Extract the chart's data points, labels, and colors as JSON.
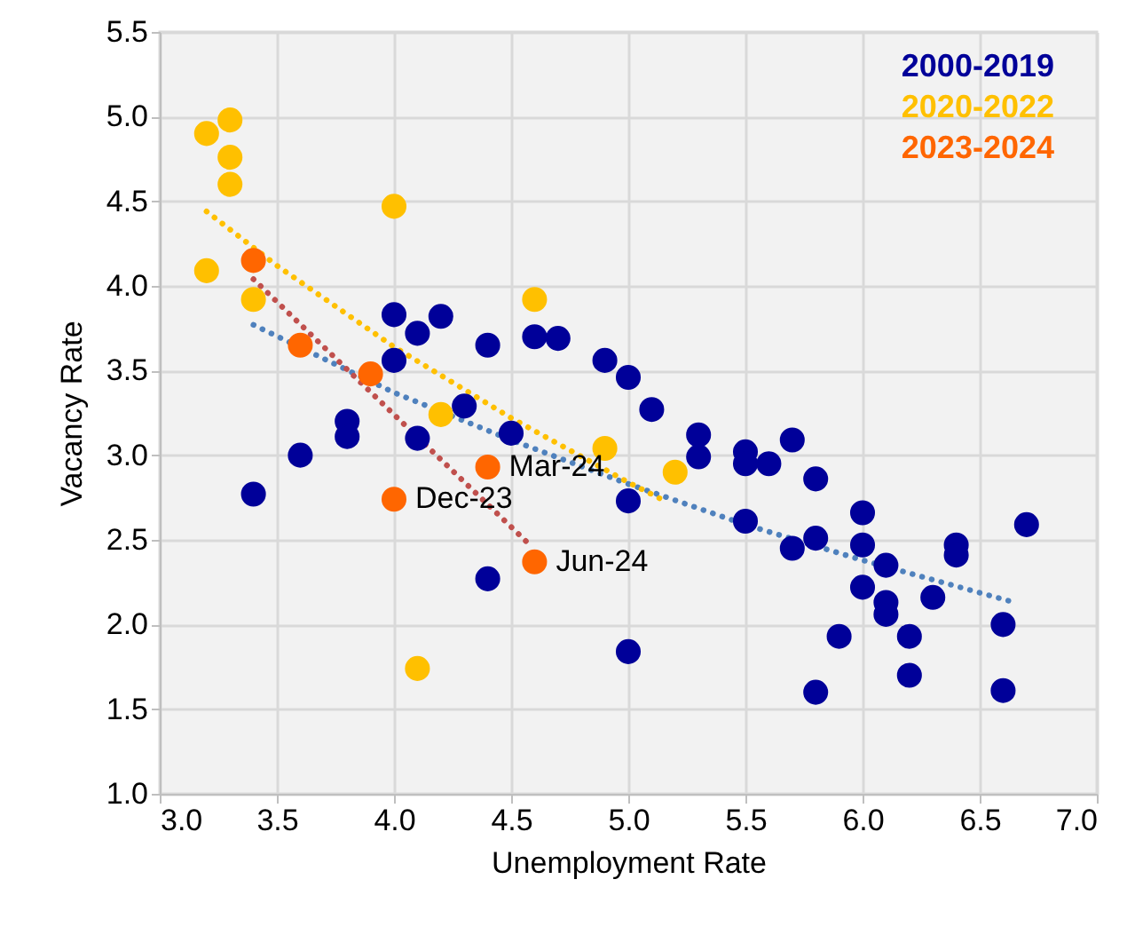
{
  "chart_data": {
    "type": "scatter",
    "xlabel": "Unemployment Rate",
    "ylabel": "Vacancy Rate",
    "xlim": [
      3.0,
      7.0
    ],
    "ylim": [
      1.0,
      5.5
    ],
    "xticks": [
      {
        "value": 3,
        "label": "3.0"
      },
      {
        "value": 3.5,
        "label": "3.5"
      },
      {
        "value": 4,
        "label": "4.0"
      },
      {
        "value": 4.5,
        "label": "4.5"
      },
      {
        "value": 5,
        "label": "5.0"
      },
      {
        "value": 5.5,
        "label": "5.5"
      },
      {
        "value": 6,
        "label": "6.0"
      },
      {
        "value": 6.5,
        "label": "6.5"
      },
      {
        "value": 7,
        "label": "7.0"
      }
    ],
    "yticks": [
      {
        "value": 1,
        "label": "1.0"
      },
      {
        "value": 1.5,
        "label": "1.5"
      },
      {
        "value": 2,
        "label": "2.0"
      },
      {
        "value": 2.5,
        "label": "2.5"
      },
      {
        "value": 3,
        "label": "3.0"
      },
      {
        "value": 3.5,
        "label": "3.5"
      },
      {
        "value": 4,
        "label": "4.0"
      },
      {
        "value": 4.5,
        "label": "4.5"
      },
      {
        "value": 5,
        "label": "5.0"
      },
      {
        "value": 5.5,
        "label": "5.5"
      }
    ],
    "grid": true,
    "legend": "top right",
    "series": [
      {
        "name": "2000-2019",
        "marker": "circle",
        "color": "#000099",
        "x": [
          3.4,
          3.6,
          3.8,
          3.8,
          4.0,
          4.0,
          4.1,
          4.1,
          4.2,
          4.3,
          4.4,
          4.4,
          4.5,
          4.6,
          4.7,
          4.9,
          5.0,
          5.0,
          5.0,
          5.1,
          5.3,
          5.3,
          5.5,
          5.5,
          5.5,
          5.6,
          5.7,
          5.7,
          5.8,
          5.8,
          5.8,
          5.9,
          6.0,
          6.0,
          6.0,
          6.1,
          6.1,
          6.1,
          6.2,
          6.2,
          6.3,
          6.4,
          6.4,
          6.6,
          6.6,
          6.7
        ],
        "values": [
          2.77,
          3.0,
          3.2,
          3.11,
          3.83,
          3.56,
          3.72,
          3.1,
          3.82,
          3.29,
          3.65,
          2.27,
          3.13,
          3.7,
          3.69,
          3.56,
          3.46,
          2.73,
          1.84,
          3.27,
          3.12,
          2.99,
          3.02,
          2.95,
          2.61,
          2.95,
          3.09,
          2.45,
          2.86,
          2.51,
          1.6,
          1.93,
          2.66,
          2.47,
          2.22,
          2.35,
          2.13,
          2.06,
          1.93,
          1.7,
          2.16,
          2.47,
          2.41,
          2.0,
          1.61,
          2.59
        ]
      },
      {
        "name": "2020-2022",
        "marker": "circle",
        "color": "#ffc000",
        "x": [
          3.2,
          3.2,
          3.3,
          3.3,
          3.3,
          3.4,
          4.0,
          4.1,
          4.2,
          4.6,
          4.9,
          5.2
        ],
        "values": [
          4.9,
          4.09,
          4.98,
          4.76,
          4.6,
          3.92,
          4.47,
          1.74,
          3.24,
          3.92,
          3.04,
          2.9
        ]
      },
      {
        "name": "2023-2024",
        "marker": "circle",
        "color": "#ff6600",
        "x": [
          3.4,
          3.6,
          3.9,
          4.0,
          4.4,
          4.6
        ],
        "values": [
          4.15,
          3.65,
          3.48,
          2.74,
          2.93,
          2.37
        ]
      },
      {
        "type": "line",
        "line_style": "dotted",
        "color": "#4f81bd",
        "x": [
          3.4,
          4.0,
          4.5,
          5.0,
          5.5,
          6.0,
          6.65
        ],
        "values": [
          3.77,
          3.37,
          3.09,
          2.83,
          2.59,
          2.38,
          2.13
        ]
      },
      {
        "type": "line",
        "line_style": "dotted",
        "color": "#ffc000",
        "x": [
          3.2,
          3.5,
          4.0,
          4.5,
          5.0,
          5.17
        ],
        "values": [
          4.44,
          4.12,
          3.64,
          3.22,
          2.84,
          2.72
        ]
      },
      {
        "type": "line",
        "line_style": "dotted",
        "color": "#c0504d",
        "x": [
          3.4,
          4.0,
          4.58
        ],
        "values": [
          4.04,
          3.24,
          2.47
        ]
      }
    ],
    "annotations": [
      {
        "text": "Mar-24",
        "x": 4.4,
        "y": 2.93
      },
      {
        "text": "Dec-23",
        "x": 4.0,
        "y": 2.74
      },
      {
        "text": "Jun-24",
        "x": 4.6,
        "y": 2.37
      }
    ]
  }
}
